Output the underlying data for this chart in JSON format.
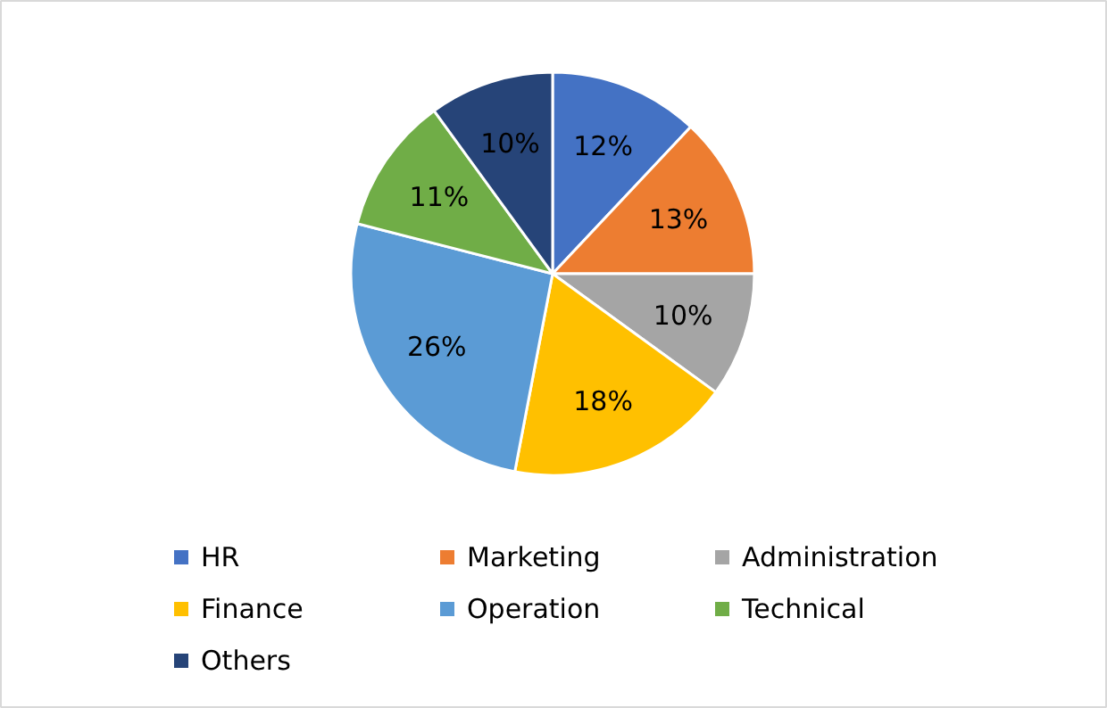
{
  "chart_data": {
    "type": "pie",
    "categories": [
      "HR",
      "Marketing",
      "Administration",
      "Finance",
      "Operation",
      "Technical",
      "Others"
    ],
    "values": [
      12,
      13,
      10,
      18,
      26,
      11,
      10
    ],
    "colors": [
      "#4472c4",
      "#ed7d31",
      "#a5a5a5",
      "#ffc000",
      "#5b9bd5",
      "#70ad47",
      "#264478"
    ],
    "value_labels": [
      "12%",
      "13%",
      "10%",
      "18%",
      "26%",
      "11%",
      "10%"
    ],
    "legend": "bottom"
  }
}
